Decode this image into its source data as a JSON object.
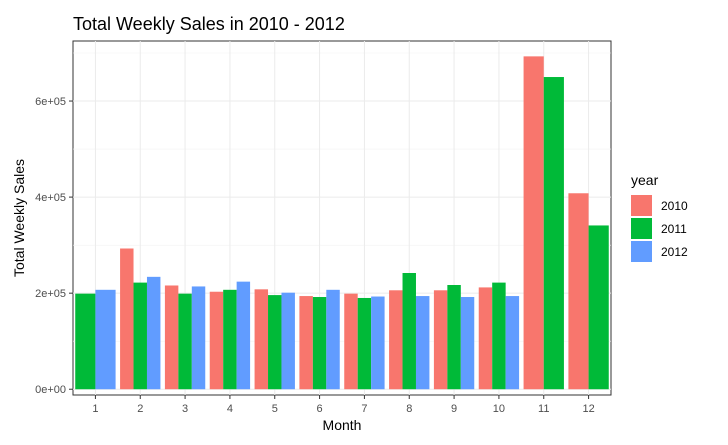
{
  "chart_data": {
    "type": "bar",
    "title": "Total Weekly Sales in 2010 - 2012",
    "xlabel": "Month",
    "ylabel": "Total Weekly Sales",
    "categories": [
      "1",
      "2",
      "3",
      "4",
      "5",
      "6",
      "7",
      "8",
      "9",
      "10",
      "11",
      "12"
    ],
    "series": [
      {
        "name": "2010",
        "color": "#F8766D",
        "values": [
          null,
          293000,
          216000,
          203000,
          208000,
          194000,
          199000,
          206000,
          206000,
          212000,
          693000,
          408000
        ]
      },
      {
        "name": "2011",
        "color": "#00BA38",
        "values": [
          199000,
          222000,
          199000,
          207000,
          196000,
          192000,
          190000,
          242000,
          217000,
          222000,
          650000,
          341000
        ]
      },
      {
        "name": "2012",
        "color": "#619CFF",
        "values": [
          207000,
          234000,
          214000,
          224000,
          201000,
          207000,
          193000,
          194000,
          192000,
          194000,
          null,
          null
        ]
      }
    ],
    "ylim": [
      -12000,
      725000
    ],
    "yticks": [
      0,
      200000,
      400000,
      600000
    ],
    "ytick_labels": [
      "0e+00",
      "2e+05",
      "4e+05",
      "6e+05"
    ],
    "grid": true,
    "legend": {
      "title": "year",
      "position": "right"
    }
  }
}
